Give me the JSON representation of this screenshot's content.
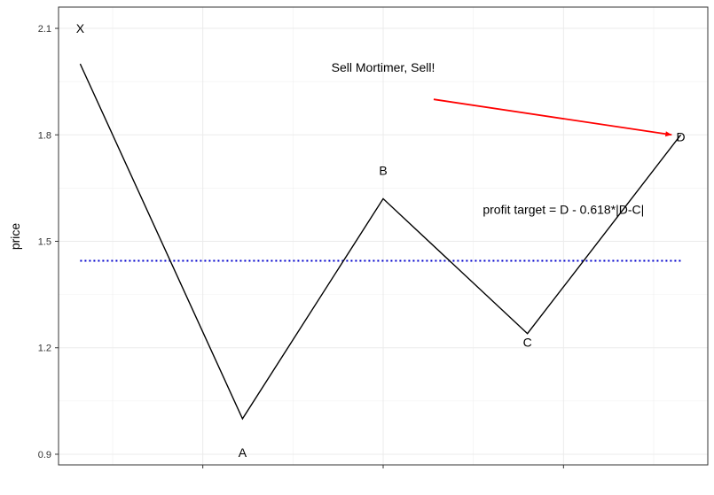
{
  "chart_data": {
    "type": "line",
    "title": "",
    "xlabel": "",
    "ylabel": "price",
    "xlim": [
      0.7,
      4.3
    ],
    "ylim": [
      0.87,
      2.16
    ],
    "y_ticks": [
      0.9,
      1.2,
      1.5,
      1.8,
      2.1
    ],
    "y_tick_labels": [
      "0.9",
      "1.2",
      "1.5",
      "1.8",
      "2.1"
    ],
    "x_ticks": [
      1.5,
      2.5,
      3.5
    ],
    "grid": true,
    "series": [
      {
        "points": [
          {
            "label": "X",
            "x": 0.82,
            "y": 2.0
          },
          {
            "label": "A",
            "x": 1.72,
            "y": 1.0
          },
          {
            "label": "B",
            "x": 2.5,
            "y": 1.62
          },
          {
            "label": "C",
            "x": 3.3,
            "y": 1.24
          },
          {
            "label": "D",
            "x": 4.15,
            "y": 1.8
          }
        ],
        "color": "#000000"
      }
    ],
    "point_labels": [
      {
        "text": "X",
        "x": 0.82,
        "y": 2.1
      },
      {
        "text": "A",
        "x": 1.72,
        "y": 0.905
      },
      {
        "text": "B",
        "x": 2.5,
        "y": 1.7
      },
      {
        "text": "C",
        "x": 3.3,
        "y": 1.215
      },
      {
        "text": "D",
        "x": 4.15,
        "y": 1.795
      }
    ],
    "hline": {
      "y": 1.445,
      "x_from": 0.82,
      "x_to": 4.15,
      "color": "#0000cc",
      "style": "dotted"
    },
    "arrow": {
      "x_from": 2.78,
      "y_from": 1.9,
      "x_to": 4.1,
      "y_to": 1.8,
      "color": "#ff0000"
    },
    "annotations": [
      {
        "text": "Sell Mortimer, Sell!",
        "x": 2.5,
        "y": 1.99
      },
      {
        "text": "profit target = D - 0.618*|D-C|",
        "x": 3.5,
        "y": 1.59
      }
    ]
  }
}
